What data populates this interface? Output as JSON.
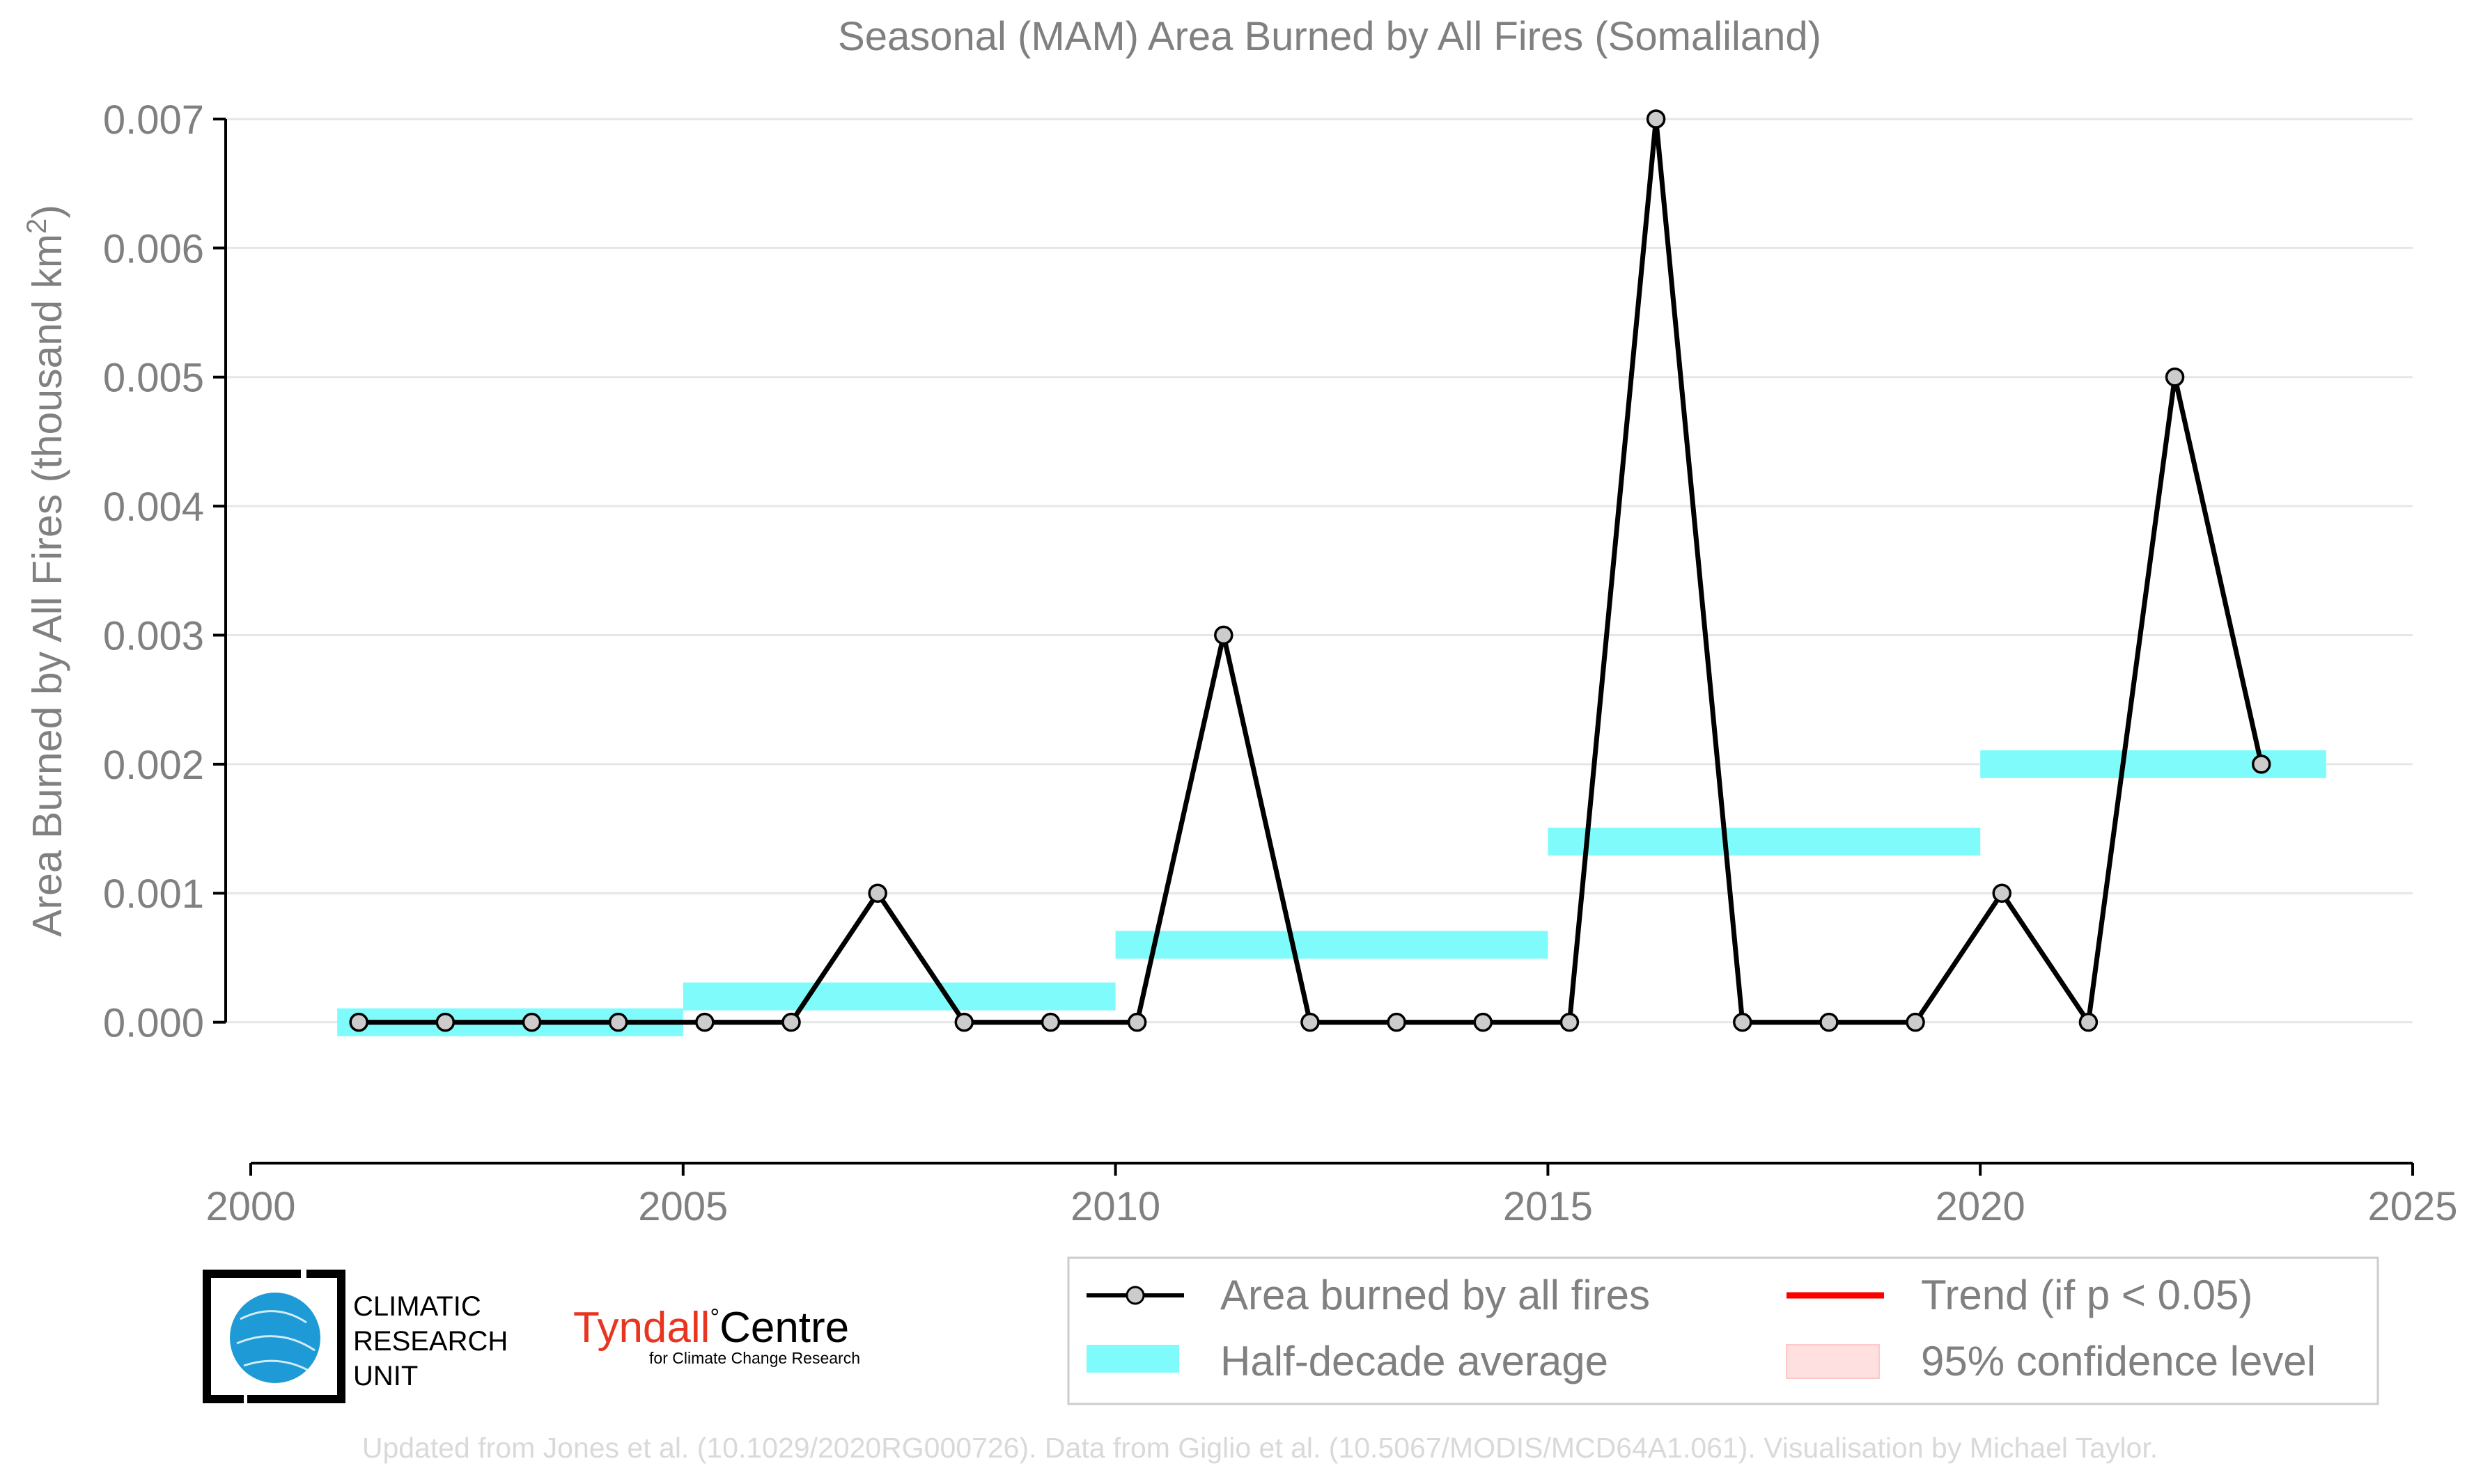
{
  "chart_data": {
    "type": "line",
    "title": "Seasonal (MAM) Area Burned by All Fires (Somaliland)",
    "ylabel_main": "Area Burned by All Fires (thousand km",
    "ylabel_sup": "2",
    "ylabel_close": ")",
    "xlim": [
      2000,
      2025
    ],
    "ylim": [
      -0.00052,
      0.007
    ],
    "x_ticks": [
      2000,
      2005,
      2010,
      2015,
      2020,
      2025
    ],
    "x_tick_labels": [
      "2000",
      "2005",
      "2010",
      "2015",
      "2020",
      "2025"
    ],
    "y_ticks": [
      0,
      0.001,
      0.002,
      0.003,
      0.004,
      0.005,
      0.006,
      0.007
    ],
    "y_tick_labels": [
      "0.000",
      "0.001",
      "0.002",
      "0.003",
      "0.004",
      "0.005",
      "0.006",
      "0.007"
    ],
    "grid": "horizontal",
    "series": [
      {
        "name": "Area burned by all fires",
        "x": [
          2001,
          2002,
          2003,
          2004,
          2005,
          2006,
          2007,
          2008,
          2009,
          2010,
          2011,
          2012,
          2013,
          2014,
          2015,
          2016,
          2017,
          2018,
          2019,
          2020,
          2021,
          2022,
          2023
        ],
        "values": [
          0,
          0,
          0,
          0,
          0,
          0,
          0.001,
          0,
          0,
          0,
          0.003,
          0,
          0,
          0,
          0,
          0.007,
          0,
          0,
          0,
          0.001,
          0,
          0.005,
          0.002
        ]
      }
    ],
    "half_decade_average": {
      "name": "Half-decade average",
      "periods": [
        {
          "start": 2001,
          "end": 2005,
          "value": 0.0
        },
        {
          "start": 2005,
          "end": 2010,
          "value": 0.0002
        },
        {
          "start": 2010,
          "end": 2015,
          "value": 0.0006
        },
        {
          "start": 2015,
          "end": 2020,
          "value": 0.0014
        },
        {
          "start": 2020,
          "end": 2024,
          "value": 0.002
        }
      ]
    },
    "legend": {
      "placement": "bottom-right",
      "entries": [
        {
          "label": "Area burned by all fires",
          "kind": "line-marker",
          "color": "#000000"
        },
        {
          "label": "Trend (if p < 0.05)",
          "kind": "line",
          "color": "#ff0000"
        },
        {
          "label": "Half-decade average",
          "kind": "band",
          "color": "#7ffbfb"
        },
        {
          "label": "95% confidence level",
          "kind": "band",
          "color": "#ffe0e0"
        }
      ]
    },
    "colors": {
      "line": "#000000",
      "marker_fill": "#cccccc",
      "half_decade": "#7ffbfb",
      "trend": "#ff0000",
      "confidence": "#ffe0e0",
      "text": "#808080",
      "grid": "#e6e6e6",
      "tyndall_red": "#e8351f",
      "cru_blue": "#1e9ad6"
    }
  },
  "logos": {
    "cru_line1": "CLIMATIC",
    "cru_line2": "RESEARCH",
    "cru_line3": "UNIT",
    "tyndall_name": "Tyndall",
    "tyndall_centre": "Centre",
    "tyndall_sub": "for Climate Change Research"
  },
  "credit": "Updated from Jones et al. (10.1029/2020RG000726). Data from Giglio et al. (10.5067/MODIS/MCD64A1.061). Visualisation by Michael Taylor."
}
